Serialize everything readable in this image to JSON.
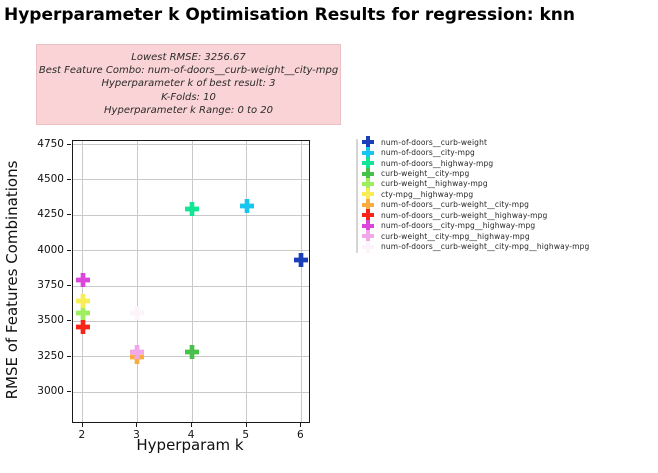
{
  "title": "Hyperparameter k Optimisation Results for regression: knn",
  "annotation": {
    "bg_color": "#f9d3d5",
    "lines": [
      "Lowest RMSE: 3256.67",
      "Best Feature Combo: num-of-doors__curb-weight__city-mpg",
      "Hyperparameter k of best result: 3",
      "K-Folds: 10",
      "Hyperparameter k Range: 0 to 20"
    ]
  },
  "chart_data": {
    "type": "scatter",
    "title": "Hyperparameter k Optimisation Results for regression: knn",
    "xlabel": "Hyperparam k",
    "ylabel": "RMSE of Features Combinations",
    "xlim": [
      1.82,
      6.14
    ],
    "ylim": [
      2790,
      4775
    ],
    "xticks": [
      2,
      3,
      4,
      5,
      6
    ],
    "yticks": [
      3000,
      3250,
      3500,
      3750,
      4000,
      4250,
      4500,
      4750
    ],
    "grid": true,
    "grid_color": "#c9c9c9",
    "marker": "plus-filled",
    "legend_position": "right",
    "series": [
      {
        "name": "num-of-doors__curb-weight",
        "color": "#1c3eb8",
        "x": 6,
        "y": 3940
      },
      {
        "name": "num-of-doors__city-mpg",
        "color": "#18c5ee",
        "x": 5,
        "y": 4320
      },
      {
        "name": "num-of-doors__highway-mpg",
        "color": "#12e593",
        "x": 4,
        "y": 4300
      },
      {
        "name": "curb-weight__city-mpg",
        "color": "#48c14a",
        "x": 4,
        "y": 3295
      },
      {
        "name": "curb-weight__highway-mpg",
        "color": "#9eef60",
        "x": 2,
        "y": 3565
      },
      {
        "name": "cty-mpg__highway-mpg",
        "color": "#f8ed52",
        "x": 2,
        "y": 3650
      },
      {
        "name": "num-of-doors__curb-weight__city-mpg",
        "color": "#f9ac41",
        "x": 3,
        "y": 3256.67
      },
      {
        "name": "num-of-doors__curb-weight__highway-mpg",
        "color": "#f92418",
        "x": 2,
        "y": 3465
      },
      {
        "name": "num-of-doors__city-mpg__highway-mpg",
        "color": "#dc46dd",
        "x": 2,
        "y": 3800
      },
      {
        "name": "curb-weight__city-mpg__highway-mpg",
        "color": "#f1a8ea",
        "x": 3,
        "y": 3295
      },
      {
        "name": "num-of-doors__curb-weight__city-mpg__highway-mpg",
        "color": "#fdf3fb",
        "x": 3,
        "y": 3570
      }
    ]
  }
}
